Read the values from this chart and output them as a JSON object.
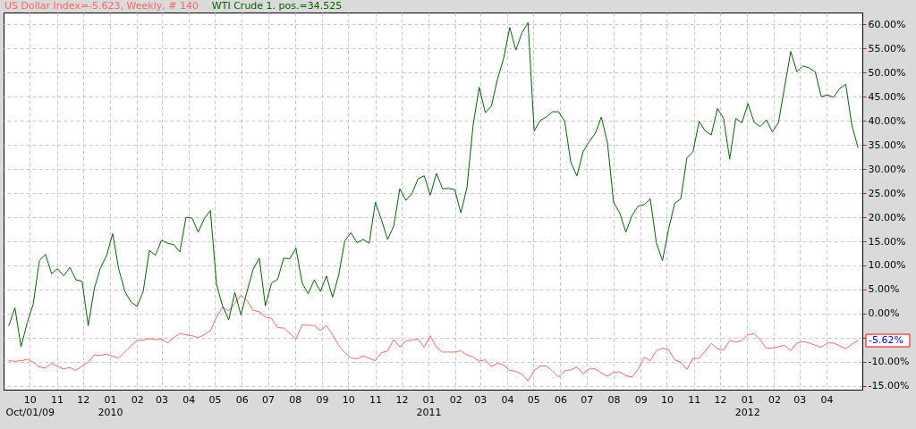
{
  "chart_data": {
    "type": "line",
    "x": [
      "2009-09-07",
      "2009-09-14",
      "2009-09-21",
      "2009-09-28",
      "2009-10-05",
      "2009-10-12",
      "2009-10-19",
      "2009-10-26",
      "2009-11-02",
      "2009-11-09",
      "2009-11-16",
      "2009-11-23",
      "2009-11-30",
      "2009-12-07",
      "2009-12-14",
      "2009-12-21",
      "2009-12-28",
      "2010-01-04",
      "2010-01-11",
      "2010-01-18",
      "2010-01-25",
      "2010-02-01",
      "2010-02-08",
      "2010-02-15",
      "2010-02-22",
      "2010-03-01",
      "2010-03-08",
      "2010-03-15",
      "2010-03-22",
      "2010-03-29",
      "2010-04-05",
      "2010-04-12",
      "2010-04-19",
      "2010-04-26",
      "2010-05-03",
      "2010-05-10",
      "2010-05-17",
      "2010-05-24",
      "2010-05-31",
      "2010-06-07",
      "2010-06-14",
      "2010-06-21",
      "2010-06-28",
      "2010-07-05",
      "2010-07-12",
      "2010-07-19",
      "2010-07-26",
      "2010-08-02",
      "2010-08-09",
      "2010-08-16",
      "2010-08-23",
      "2010-08-30",
      "2010-09-06",
      "2010-09-13",
      "2010-09-20",
      "2010-09-27",
      "2010-10-04",
      "2010-10-11",
      "2010-10-18",
      "2010-10-25",
      "2010-11-01",
      "2010-11-08",
      "2010-11-15",
      "2010-11-22",
      "2010-11-29",
      "2010-12-06",
      "2010-12-13",
      "2010-12-20",
      "2010-12-27",
      "2011-01-03",
      "2011-01-10",
      "2011-01-17",
      "2011-01-24",
      "2011-01-31",
      "2011-02-07",
      "2011-02-14",
      "2011-02-21",
      "2011-02-28",
      "2011-03-07",
      "2011-03-14",
      "2011-03-21",
      "2011-03-28",
      "2011-04-04",
      "2011-04-11",
      "2011-04-18",
      "2011-04-25",
      "2011-05-02",
      "2011-05-09",
      "2011-05-16",
      "2011-05-23",
      "2011-05-30",
      "2011-06-06",
      "2011-06-13",
      "2011-06-20",
      "2011-06-27",
      "2011-07-04",
      "2011-07-11",
      "2011-07-18",
      "2011-07-25",
      "2011-08-01",
      "2011-08-08",
      "2011-08-15",
      "2011-08-22",
      "2011-08-29",
      "2011-09-05",
      "2011-09-12",
      "2011-09-19",
      "2011-09-26",
      "2011-10-03",
      "2011-10-10",
      "2011-10-17",
      "2011-10-24",
      "2011-10-31",
      "2011-11-07",
      "2011-11-14",
      "2011-11-21",
      "2011-11-28",
      "2011-12-05",
      "2011-12-12",
      "2011-12-19",
      "2011-12-26",
      "2012-01-02",
      "2012-01-09",
      "2012-01-16",
      "2012-01-23",
      "2012-01-30",
      "2012-02-06",
      "2012-02-13",
      "2012-02-20",
      "2012-02-27",
      "2012-03-05",
      "2012-03-12",
      "2012-03-19",
      "2012-03-26",
      "2012-04-02",
      "2012-04-09",
      "2012-04-16",
      "2012-04-23",
      "2012-04-30",
      "2012-05-07"
    ],
    "xlim": [
      "2009-09-01",
      "2012-05-12"
    ],
    "xticks": [
      {
        "value": "2009-10-01",
        "label": "10\nOct/01/09"
      },
      {
        "value": "2009-11-01",
        "label": "11"
      },
      {
        "value": "2009-12-01",
        "label": "12"
      },
      {
        "value": "2010-01-01",
        "label": "01\n2010"
      },
      {
        "value": "2010-02-01",
        "label": "02"
      },
      {
        "value": "2010-03-01",
        "label": "03"
      },
      {
        "value": "2010-04-01",
        "label": "04"
      },
      {
        "value": "2010-05-01",
        "label": "05"
      },
      {
        "value": "2010-06-01",
        "label": "06"
      },
      {
        "value": "2010-07-01",
        "label": "07"
      },
      {
        "value": "2010-08-01",
        "label": "08"
      },
      {
        "value": "2010-09-01",
        "label": "09"
      },
      {
        "value": "2010-10-01",
        "label": "10"
      },
      {
        "value": "2010-11-01",
        "label": "11"
      },
      {
        "value": "2010-12-01",
        "label": "12"
      },
      {
        "value": "2011-01-01",
        "label": "01\n2011"
      },
      {
        "value": "2011-02-01",
        "label": "02"
      },
      {
        "value": "2011-03-01",
        "label": "03"
      },
      {
        "value": "2011-04-01",
        "label": "04"
      },
      {
        "value": "2011-05-01",
        "label": "05"
      },
      {
        "value": "2011-06-01",
        "label": "06"
      },
      {
        "value": "2011-07-01",
        "label": "07"
      },
      {
        "value": "2011-08-01",
        "label": "08"
      },
      {
        "value": "2011-09-01",
        "label": "09"
      },
      {
        "value": "2011-10-01",
        "label": "10"
      },
      {
        "value": "2011-11-01",
        "label": "11"
      },
      {
        "value": "2011-12-01",
        "label": "12"
      },
      {
        "value": "2012-01-01",
        "label": "01\n2012"
      },
      {
        "value": "2012-02-01",
        "label": "02"
      },
      {
        "value": "2012-03-01",
        "label": "03"
      },
      {
        "value": "2012-04-01",
        "label": "04"
      }
    ],
    "ylim": [
      -15.8,
      62.5
    ],
    "yticks": [
      {
        "value": -15,
        "label": "-15.00%"
      },
      {
        "value": -10,
        "label": "-10.00%"
      },
      {
        "value": -5,
        "label": null
      },
      {
        "value": 0,
        "label": "0.00%"
      },
      {
        "value": 5,
        "label": "5.00%"
      },
      {
        "value": 10,
        "label": "10.00%"
      },
      {
        "value": 15,
        "label": "15.00%"
      },
      {
        "value": 20,
        "label": "20.00%"
      },
      {
        "value": 25,
        "label": "25.00%"
      },
      {
        "value": 30,
        "label": "30.00%"
      },
      {
        "value": 35,
        "label": "35.00%"
      },
      {
        "value": 40,
        "label": "40.00%"
      },
      {
        "value": 45,
        "label": "45.00%"
      },
      {
        "value": 50,
        "label": "50.00%"
      },
      {
        "value": 55,
        "label": "55.00%"
      },
      {
        "value": 60,
        "label": "60.00%"
      }
    ],
    "series": [
      {
        "name": "US Dollar Index=-5.623, Weekly, # 140",
        "color": "#ff6666",
        "values": [
          -9.8,
          -9.9,
          -9.8,
          -9.5,
          -10.1,
          -11.1,
          -11.3,
          -10.3,
          -11.0,
          -11.5,
          -11.2,
          -11.8,
          -10.9,
          -10.1,
          -8.6,
          -8.7,
          -8.4,
          -8.9,
          -9.2,
          -8.0,
          -6.7,
          -5.6,
          -5.5,
          -5.2,
          -5.4,
          -5.3,
          -6.1,
          -5.0,
          -4.1,
          -4.4,
          -4.6,
          -5.0,
          -4.4,
          -3.6,
          -0.7,
          1.3,
          0.6,
          2.1,
          3.8,
          2.7,
          0.7,
          0.4,
          -0.7,
          -1.0,
          -2.9,
          -3.0,
          -4.1,
          -5.3,
          -2.4,
          -2.4,
          -2.5,
          -3.5,
          -2.5,
          -4.4,
          -6.6,
          -8.1,
          -9.2,
          -9.4,
          -8.8,
          -9.3,
          -9.8,
          -8.1,
          -7.8,
          -5.4,
          -6.9,
          -5.7,
          -5.5,
          -5.3,
          -7.0,
          -4.6,
          -7.0,
          -8.0,
          -8.0,
          -8.0,
          -7.7,
          -8.6,
          -9.0,
          -9.9,
          -9.6,
          -11.0,
          -10.3,
          -10.7,
          -11.8,
          -12.0,
          -12.6,
          -14.0,
          -11.8,
          -10.9,
          -10.9,
          -11.9,
          -13.2,
          -11.9,
          -11.7,
          -11.1,
          -12.5,
          -11.5,
          -11.5,
          -12.3,
          -13.0,
          -12.2,
          -12.1,
          -12.9,
          -13.2,
          -11.6,
          -9.1,
          -9.8,
          -7.7,
          -7.2,
          -7.5,
          -9.6,
          -10.1,
          -11.6,
          -9.3,
          -9.3,
          -7.8,
          -6.2,
          -7.3,
          -7.6,
          -5.6,
          -5.9,
          -5.6,
          -4.4,
          -4.2,
          -5.4,
          -7.2,
          -7.2,
          -6.9,
          -6.6,
          -7.7,
          -6.1,
          -5.8,
          -6.1,
          -6.6,
          -7.0,
          -6.1,
          -6.1,
          -6.7,
          -7.3,
          -6.4,
          -5.6
        ]
      },
      {
        "name": "WTI Crude 1. pos.=34.525",
        "color": "#006400",
        "values": [
          -2.5,
          1.2,
          -6.9,
          -2.0,
          2.0,
          11.0,
          12.3,
          8.3,
          9.3,
          7.8,
          9.6,
          7.0,
          6.7,
          -2.5,
          5.2,
          9.5,
          12.0,
          16.6,
          9.2,
          4.6,
          2.4,
          1.5,
          4.6,
          13.1,
          12.1,
          15.2,
          14.6,
          14.3,
          12.8,
          20.0,
          19.8,
          16.9,
          19.7,
          21.4,
          6.1,
          1.5,
          -1.3,
          4.4,
          -0.3,
          4.6,
          9.2,
          11.5,
          1.6,
          6.3,
          7.1,
          11.5,
          11.4,
          13.6,
          6.4,
          4.1,
          7.0,
          4.6,
          7.8,
          3.4,
          8.0,
          15.1,
          16.8,
          14.7,
          15.4,
          14.6,
          23.1,
          19.5,
          15.4,
          18.1,
          25.9,
          23.5,
          24.9,
          28.0,
          28.6,
          24.6,
          29.1,
          25.9,
          26.0,
          25.7,
          20.9,
          26.2,
          39.1,
          47.0,
          41.7,
          43.1,
          48.7,
          53.0,
          59.4,
          54.7,
          58.3,
          60.4,
          37.9,
          40.1,
          40.8,
          41.9,
          41.9,
          39.9,
          31.4,
          28.6,
          33.6,
          35.7,
          37.4,
          40.8,
          35.4,
          23.1,
          20.9,
          16.9,
          20.3,
          22.3,
          22.6,
          23.8,
          14.7,
          11.0,
          17.5,
          22.9,
          23.8,
          32.3,
          33.6,
          39.9,
          37.9,
          37.1,
          42.6,
          40.5,
          32.1,
          40.5,
          39.6,
          43.6,
          39.7,
          38.8,
          40.2,
          37.7,
          39.7,
          47.1,
          54.4,
          50.2,
          51.4,
          51.0,
          50.2,
          45.0,
          45.4,
          44.9,
          46.7,
          47.6,
          39.1,
          34.5
        ]
      }
    ],
    "annotations": [
      "-5.62%"
    ],
    "grid": true,
    "legend": "top left"
  }
}
